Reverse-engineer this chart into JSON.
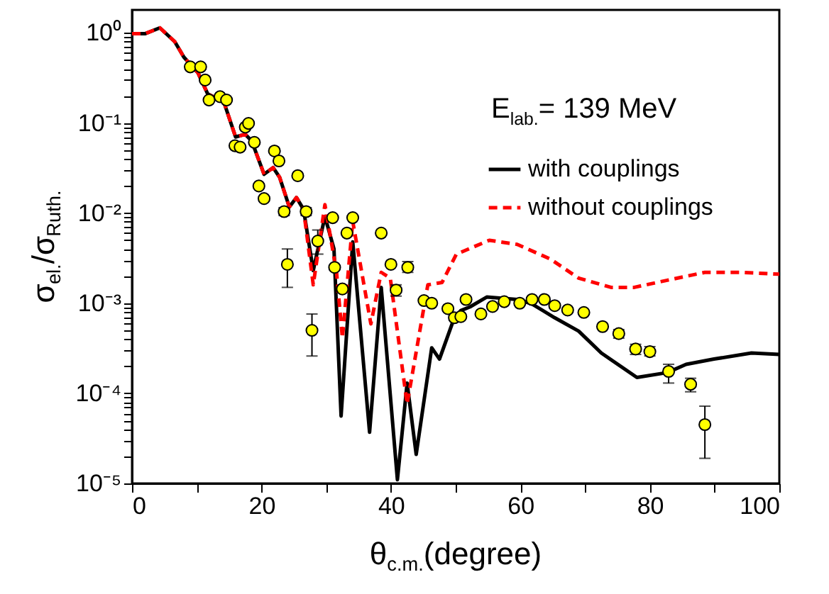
{
  "chart_data": {
    "type": "line",
    "xlabel": "θ$_{c.m.}$(degree)",
    "ylabel": "σ$_{el.}$/σ$_{Ruth.}$",
    "annotations": [
      "E$_{lab.}$= 139 MeV"
    ],
    "xlim": [
      0,
      100
    ],
    "xticks": [
      0,
      {
        "value": 10,
        "label": null
      },
      20,
      {
        "value": 30,
        "label": null
      },
      40,
      {
        "value": 50,
        "label": null
      },
      60,
      {
        "value": 70,
        "label": null
      },
      80,
      {
        "value": 90,
        "label": null
      },
      100
    ],
    "ylim": [
      1e-05,
      1.8
    ],
    "yticks": [
      {
        "value": 1e-05,
        "label": "10⁻⁵"
      },
      {
        "value": 0.0001,
        "label": "10⁻⁴"
      },
      {
        "value": 0.001,
        "label": "10⁻³"
      },
      {
        "value": 0.01,
        "label": "10⁻²"
      },
      {
        "value": 0.1,
        "label": "10⁻¹"
      },
      {
        "value": 1,
        "label": "10⁰"
      },
      {
        "value": 2e-05,
        "label": null
      },
      {
        "value": 3e-05,
        "label": null
      },
      {
        "value": 4e-05,
        "label": null
      },
      {
        "value": 5e-05,
        "label": null
      },
      {
        "value": 6e-05,
        "label": null
      },
      {
        "value": 7e-05,
        "label": null
      },
      {
        "value": 8e-05,
        "label": null
      },
      {
        "value": 9e-05,
        "label": null
      },
      {
        "value": 0.0002,
        "label": null
      },
      {
        "value": 0.0003,
        "label": null
      },
      {
        "value": 0.0004,
        "label": null
      },
      {
        "value": 0.0005,
        "label": null
      },
      {
        "value": 0.0006,
        "label": null
      },
      {
        "value": 0.0007,
        "label": null
      },
      {
        "value": 0.0008,
        "label": null
      },
      {
        "value": 0.0009,
        "label": null
      },
      {
        "value": 0.002,
        "label": null
      },
      {
        "value": 0.003,
        "label": null
      },
      {
        "value": 0.004,
        "label": null
      },
      {
        "value": 0.005,
        "label": null
      },
      {
        "value": 0.006,
        "label": null
      },
      {
        "value": 0.007,
        "label": null
      },
      {
        "value": 0.008,
        "label": null
      },
      {
        "value": 0.009,
        "label": null
      },
      {
        "value": 0.02,
        "label": null
      },
      {
        "value": 0.03,
        "label": null
      },
      {
        "value": 0.04,
        "label": null
      },
      {
        "value": 0.05,
        "label": null
      },
      {
        "value": 0.06,
        "label": null
      },
      {
        "value": 0.07,
        "label": null
      },
      {
        "value": 0.08,
        "label": null
      },
      {
        "value": 0.09,
        "label": null
      },
      {
        "value": 0.2,
        "label": null
      },
      {
        "value": 0.3,
        "label": null
      },
      {
        "value": 0.4,
        "label": null
      },
      {
        "value": 0.5,
        "label": null
      },
      {
        "value": 0.6,
        "label": null
      },
      {
        "value": 0.7,
        "label": null
      },
      {
        "value": 0.8,
        "label": null
      },
      {
        "value": 0.9,
        "label": null
      }
    ],
    "log": true,
    "grid": false,
    "legend": "top right",
    "series": [
      {
        "name": "with couplings",
        "color": "#000000",
        "line_style": "solid",
        "marker": "none",
        "x": [
          0,
          2,
          4.3,
          6.6,
          8.0,
          10.2,
          11.7,
          14.2,
          16.0,
          17.5,
          18.5,
          20.4,
          21.8,
          22.8,
          24.3,
          25.4,
          26.5,
          28.0,
          29.8,
          31.2,
          32.3,
          34.1,
          36.7,
          38.5,
          41.0,
          42.5,
          43.9,
          46.3,
          47.5,
          49.7,
          50.8,
          52.2,
          54.8,
          59.5,
          61.7,
          65.3,
          69.0,
          72.5,
          78.0,
          82.7,
          85.6,
          89.9,
          95.7,
          100
        ],
        "values": [
          0.98,
          0.98,
          1.14,
          0.8,
          0.54,
          0.36,
          0.21,
          0.17,
          0.07,
          0.075,
          0.063,
          0.027,
          0.032,
          0.025,
          0.0117,
          0.0149,
          0.011,
          0.0023,
          0.0092,
          0.004,
          5.6e-05,
          0.0048,
          3.7e-05,
          0.0015,
          1.1e-05,
          0.00013,
          2.1e-05,
          0.00032,
          0.00024,
          0.00066,
          0.00083,
          0.00091,
          0.00117,
          0.0011,
          0.00099,
          0.00069,
          0.00049,
          0.00028,
          0.00015,
          0.00017,
          0.00021,
          0.00024,
          0.00028,
          0.00027
        ]
      },
      {
        "name": "without couplings",
        "color": "#ff0000",
        "line_style": "dashed",
        "marker": "none",
        "x": [
          0,
          2,
          4.3,
          6.6,
          8.0,
          10.2,
          11.7,
          14.2,
          16.0,
          17.5,
          18.5,
          20.4,
          21.8,
          22.8,
          24.3,
          25.4,
          26.5,
          28.0,
          29.8,
          31.6,
          32.5,
          34.1,
          36.9,
          38.5,
          39.9,
          42.5,
          45.7,
          47.9,
          50.1,
          55.2,
          59.5,
          64.6,
          69.0,
          74.0,
          77.6,
          82.7,
          88.5,
          94.3,
          100
        ],
        "values": [
          0.98,
          0.98,
          1.14,
          0.8,
          0.54,
          0.36,
          0.21,
          0.17,
          0.07,
          0.075,
          0.063,
          0.027,
          0.032,
          0.025,
          0.0117,
          0.0149,
          0.011,
          0.0016,
          0.0124,
          0.0022,
          0.00041,
          0.0081,
          0.00059,
          0.0022,
          0.0019,
          7.6e-05,
          0.0016,
          0.0017,
          0.0035,
          0.005,
          0.0045,
          0.0031,
          0.0019,
          0.0015,
          0.0015,
          0.0018,
          0.0022,
          0.0022,
          0.0021
        ]
      },
      {
        "type": "scatter",
        "color": "#ffff00",
        "marker": "circle",
        "x": [
          9.0,
          10.6,
          11.3,
          11.9,
          13.6,
          14.6,
          15.9,
          16.7,
          17.5,
          18.0,
          18.9,
          19.6,
          20.4,
          22.0,
          22.7,
          23.5,
          24.0,
          25.6,
          26.9,
          27.8,
          28.7,
          31.0,
          31.3,
          32.5,
          33.2,
          34.1,
          38.5,
          40.0,
          40.8,
          42.6,
          45.1,
          46.3,
          48.8,
          49.8,
          50.8,
          51.6,
          53.9,
          55.7,
          57.5,
          59.9,
          61.8,
          63.7,
          65.3,
          67.3,
          69.8,
          72.7,
          75.2,
          77.8,
          80.0,
          82.9,
          86.3,
          88.5
        ],
        "values": [
          0.42,
          0.42,
          0.3,
          0.18,
          0.196,
          0.18,
          0.056,
          0.054,
          0.09,
          0.099,
          0.061,
          0.02,
          0.0145,
          0.049,
          0.038,
          0.0104,
          0.0027,
          0.026,
          0.0104,
          0.0005,
          0.0049,
          0.0089,
          0.0025,
          0.00144,
          0.006,
          0.0089,
          0.006,
          0.0027,
          0.0014,
          0.0025,
          0.00107,
          0.001,
          0.00087,
          0.00069,
          0.00071,
          0.0011,
          0.00076,
          0.00092,
          0.00104,
          0.001,
          0.0011,
          0.0011,
          0.00094,
          0.00084,
          0.00079,
          0.00055,
          0.00046,
          0.00031,
          0.00029,
          0.000175,
          0.000126,
          4.5e-05
        ],
        "errors": [
          null,
          null,
          null,
          null,
          null,
          null,
          null,
          null,
          null,
          null,
          null,
          null,
          null,
          null,
          null,
          [
            0.0094,
            0.0115
          ],
          [
            0.0015,
            0.004
          ],
          null,
          [
            0.0094,
            0.0115
          ],
          [
            0.00026,
            0.00076
          ],
          [
            0.0035,
            0.0065
          ],
          null,
          null,
          null,
          null,
          null,
          null,
          null,
          [
            0.0012,
            0.0016
          ],
          [
            0.0022,
            0.0029
          ],
          null,
          null,
          null,
          null,
          null,
          null,
          null,
          null,
          null,
          null,
          null,
          null,
          null,
          null,
          null,
          null,
          [
            0.00041,
            0.00051
          ],
          [
            0.00027,
            0.00035
          ],
          [
            0.00026,
            0.00033
          ],
          [
            0.00013,
            0.00021
          ],
          [
            0.000104,
            0.000147
          ],
          [
            1.9e-05,
            7.2e-05
          ]
        ]
      }
    ]
  }
}
